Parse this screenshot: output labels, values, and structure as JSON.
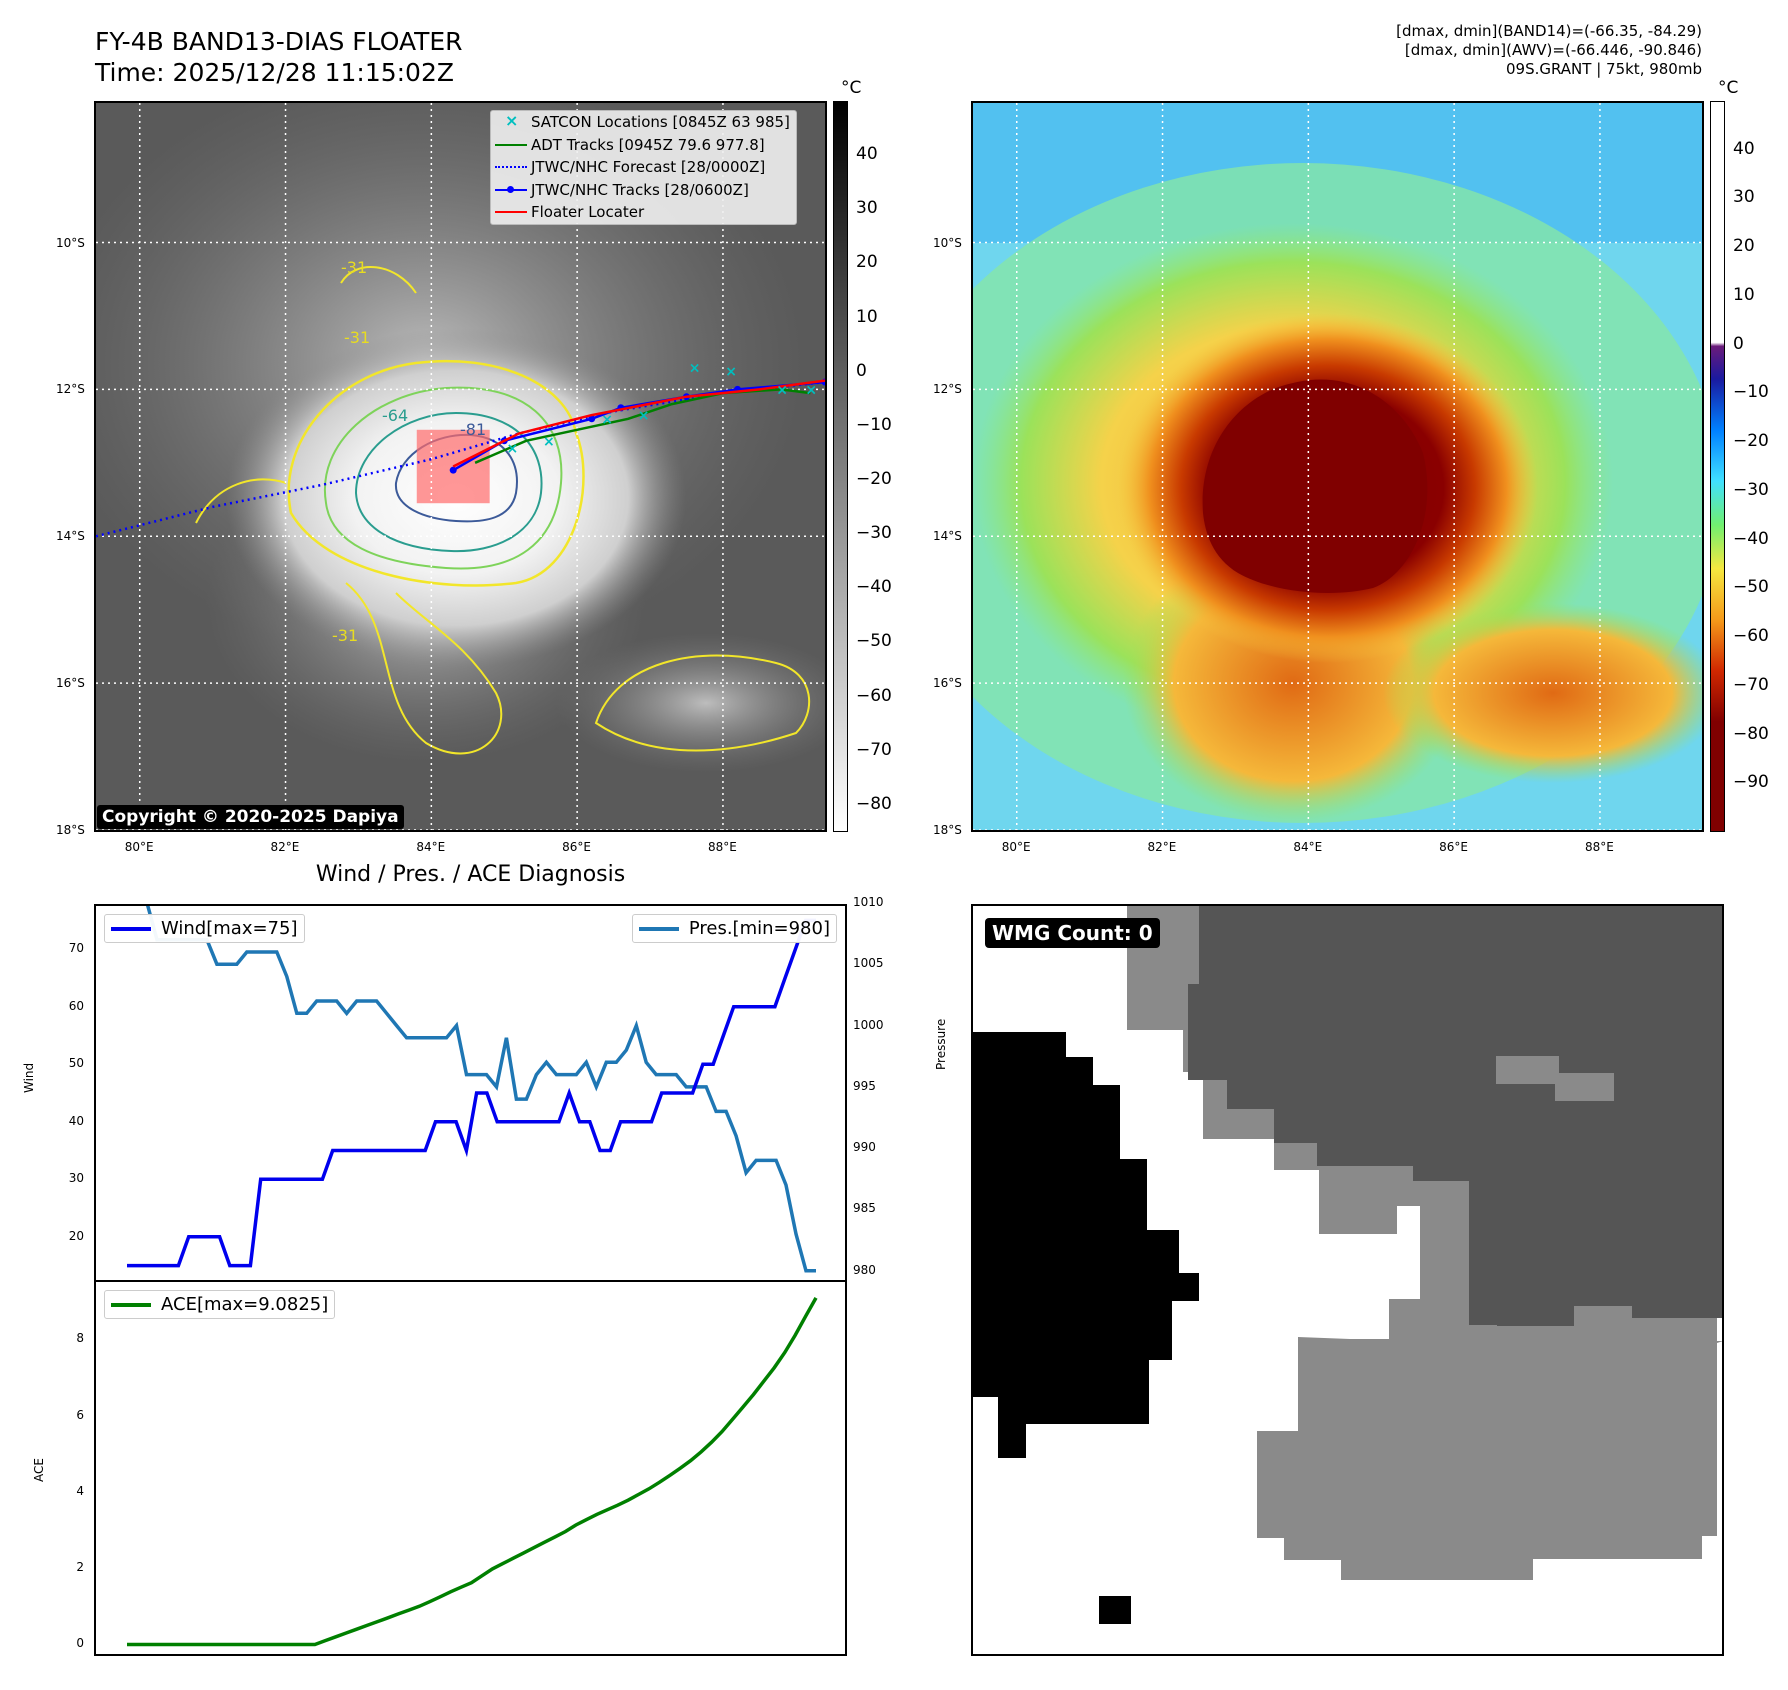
{
  "title": {
    "line1": "FY-4B BAND13-DIAS FLOATER",
    "line2": "Time: 2025/12/28 11:15:02Z"
  },
  "info": {
    "line1": "[dmax, dmin](BAND14)=(-66.35, -84.29)",
    "line2": "[dmax, dmin](AWV)=(-66.446, -90.846)",
    "line3": "09S.GRANT | 75kt, 980mb"
  },
  "colors": {
    "wind": "#0000ee",
    "pressure": "#1f77b4",
    "ace": "#008000",
    "adt": "#008000",
    "satcon": "#00bfbf",
    "floater": "#ff0000"
  },
  "map": {
    "lon_ticks": [
      "80°E",
      "82°E",
      "84°E",
      "86°E",
      "88°E"
    ],
    "lat_ticks": [
      "10°S",
      "12°S",
      "14°S",
      "16°S",
      "18°S"
    ],
    "lon_range": [
      79.4,
      89.4
    ],
    "lat_range": [
      -18.0,
      -8.1
    ],
    "contour_labels": [
      "-31",
      "-31",
      "-64",
      "-81",
      "-31"
    ],
    "legend": [
      {
        "label": "SATCON Locations [0845Z 63 985]",
        "icon": "x-marker"
      },
      {
        "label": "ADT Tracks [0945Z 79.6 977.8]",
        "icon": "green-line"
      },
      {
        "label": "JTWC/NHC Forecast [28/0000Z]",
        "icon": "dotted-line"
      },
      {
        "label": "JTWC/NHC Tracks [28/0600Z]",
        "icon": "line-dot"
      },
      {
        "label": "Floater Locater",
        "icon": "red-line"
      }
    ],
    "copyright": "Copyright © 2020-2025 Dapiya",
    "forecast_track": [
      [
        79.4,
        -14.0
      ],
      [
        81.0,
        -13.6
      ],
      [
        82.5,
        -13.3
      ],
      [
        84.0,
        -12.95
      ],
      [
        85.2,
        -12.6
      ],
      [
        86.5,
        -12.3
      ],
      [
        88.0,
        -12.05
      ],
      [
        89.4,
        -11.9
      ]
    ],
    "jtwc_track": [
      [
        84.3,
        -13.1
      ],
      [
        85.0,
        -12.7
      ],
      [
        86.2,
        -12.4
      ],
      [
        86.6,
        -12.25
      ],
      [
        87.5,
        -12.1
      ],
      [
        88.2,
        -12.0
      ],
      [
        89.4,
        -11.9
      ]
    ],
    "adt_track": [
      [
        84.6,
        -13.0
      ],
      [
        85.3,
        -12.7
      ],
      [
        86.0,
        -12.55
      ],
      [
        86.7,
        -12.4
      ],
      [
        87.3,
        -12.2
      ],
      [
        88.0,
        -12.05
      ],
      [
        88.8,
        -12.0
      ],
      [
        89.2,
        -12.05
      ]
    ],
    "floater_track": [
      [
        84.3,
        -13.05
      ],
      [
        85.2,
        -12.6
      ],
      [
        86.2,
        -12.35
      ],
      [
        87.5,
        -12.1
      ],
      [
        88.5,
        -12.0
      ],
      [
        89.4,
        -11.88
      ]
    ],
    "satcon_points": [
      [
        85.1,
        -12.8
      ],
      [
        85.6,
        -12.7
      ],
      [
        86.4,
        -12.4
      ],
      [
        86.9,
        -12.35
      ],
      [
        87.6,
        -11.7
      ],
      [
        88.1,
        -11.75
      ],
      [
        88.8,
        -12.0
      ],
      [
        89.2,
        -12.0
      ]
    ],
    "floater_box": {
      "lon": [
        83.8,
        84.8
      ],
      "lat": [
        -13.55,
        -12.55
      ]
    }
  },
  "colorbar_left": {
    "unit": "°C",
    "ticks": [
      "40",
      "30",
      "20",
      "10",
      "0",
      "−10",
      "−20",
      "−30",
      "−40",
      "−50",
      "−60",
      "−70",
      "−80"
    ]
  },
  "colorbar_right": {
    "unit": "°C",
    "ticks": [
      "40",
      "30",
      "20",
      "10",
      "0",
      "−10",
      "−20",
      "−30",
      "−40",
      "−50",
      "−60",
      "−70",
      "−80",
      "−90"
    ]
  },
  "diagnosis": {
    "title": "Wind / Pres. / ACE Diagnosis",
    "wind_legend": "Wind[max=75]",
    "pres_legend": "Pres.[min=980]",
    "ace_legend": "ACE[max=9.0825]",
    "wind_ylabel": "Wind",
    "pres_ylabel": "Pressure",
    "ace_ylabel": "ACE"
  },
  "wmg": {
    "label": "WMG Count: 0"
  },
  "chart_data": [
    {
      "type": "line",
      "ylabel": "Wind",
      "ylim": [
        12.5,
        77.5
      ],
      "yticks": [
        20,
        30,
        40,
        50,
        60,
        70
      ],
      "series": [
        {
          "name": "Wind[max=75]",
          "values": [
            15,
            15,
            15,
            15,
            15,
            15,
            20,
            20,
            20,
            20,
            15,
            15,
            15,
            30,
            30,
            30,
            30,
            30,
            30,
            30,
            35,
            35,
            35,
            35,
            35,
            35,
            35,
            35,
            35,
            35,
            40,
            40,
            40,
            35,
            45,
            45,
            40,
            40,
            40,
            40,
            40,
            40,
            40,
            45,
            40,
            40,
            35,
            35,
            40,
            40,
            40,
            40,
            45,
            45,
            45,
            45,
            50,
            50,
            55,
            60,
            60,
            60,
            60,
            60,
            65,
            70,
            75,
            75
          ]
        }
      ]
    },
    {
      "type": "line",
      "ylabel": "Pressure",
      "ylim": [
        979.25,
        1009.75
      ],
      "yticks": [
        980,
        985,
        990,
        995,
        1000,
        1005,
        1010
      ],
      "series": [
        {
          "name": "Pres.[min=980]",
          "values": [
            1010,
            1010,
            1010,
            1007,
            1007,
            1007,
            1007,
            1007,
            1007,
            1005,
            1005,
            1005,
            1006,
            1006,
            1006,
            1006,
            1004,
            1001,
            1001,
            1002,
            1002,
            1002,
            1001,
            1002,
            1002,
            1002,
            1001,
            1000,
            999,
            999,
            999,
            999,
            999,
            1000,
            996,
            996,
            996,
            995,
            999,
            994,
            994,
            996,
            997,
            996,
            996,
            996,
            997,
            995,
            997,
            997,
            998,
            1000,
            997,
            996,
            996,
            996,
            995,
            995,
            995,
            993,
            993,
            991,
            988,
            989,
            989,
            989,
            987,
            983,
            980,
            980
          ]
        }
      ]
    },
    {
      "type": "line",
      "ylabel": "ACE",
      "ylim": [
        -0.25,
        9.5
      ],
      "yticks": [
        0,
        2,
        4,
        6,
        8
      ],
      "series": [
        {
          "name": "ACE[max=9.0825]",
          "values": [
            0,
            0,
            0,
            0,
            0,
            0,
            0,
            0,
            0,
            0,
            0,
            0,
            0,
            0,
            0,
            0,
            0,
            0,
            0,
            0.1,
            0.2,
            0.3,
            0.4,
            0.5,
            0.6,
            0.7,
            0.8,
            0.9,
            1.0,
            1.12,
            1.25,
            1.38,
            1.5,
            1.62,
            1.8,
            1.98,
            2.12,
            2.26,
            2.4,
            2.54,
            2.68,
            2.82,
            2.96,
            3.13,
            3.27,
            3.41,
            3.53,
            3.65,
            3.78,
            3.93,
            4.08,
            4.25,
            4.43,
            4.62,
            4.82,
            5.05,
            5.3,
            5.58,
            5.9,
            6.22,
            6.55,
            6.9,
            7.25,
            7.65,
            8.1,
            8.6,
            9.0825
          ]
        }
      ]
    }
  ]
}
